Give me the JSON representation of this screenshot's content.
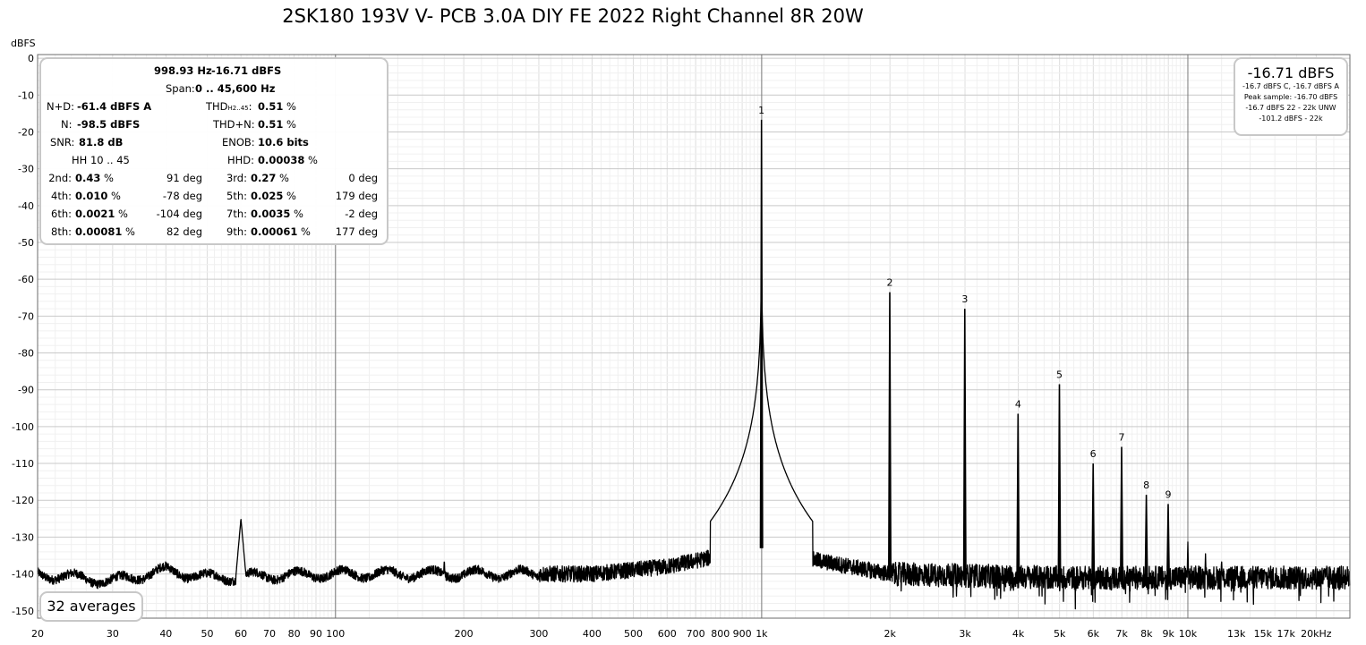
{
  "title": "2SK180 193V V- PCB 3.0A DIY FE 2022 Right Channel 8R 20W",
  "stats": {
    "fundamental_freq": "998.93 Hz",
    "fundamental_level": "-16.71 dBFS",
    "span_label": "Span:",
    "span_value": "0 .. 45,600 Hz",
    "nd_label": "N+D:",
    "nd_value": "-61.4 dBFS A",
    "thd_label_main": "THD",
    "thd_label_sub": "H2..45",
    "thd_value": "0.51",
    "n_label": "N:",
    "n_value": "-98.5 dBFS",
    "thdn_label": "THD+N:",
    "thdn_value": "0.51",
    "snr_label": "SNR:",
    "snr_value": "81.8 dB",
    "enob_label": "ENOB:",
    "enob_value": "10.6 bits",
    "hh_label": "HH 10 .. 45",
    "hhd_label": "HHD:",
    "hhd_value": "0.00038",
    "percent": "%",
    "harmonics": [
      {
        "label": "2nd:",
        "value": "0.43",
        "phase": "91 deg"
      },
      {
        "label": "3rd:",
        "value": "0.27",
        "phase": "0 deg"
      },
      {
        "label": "4th:",
        "value": "0.010",
        "phase": "-78 deg"
      },
      {
        "label": "5th:",
        "value": "0.025",
        "phase": "179 deg"
      },
      {
        "label": "6th:",
        "value": "0.0021",
        "phase": "-104 deg"
      },
      {
        "label": "7th:",
        "value": "0.0035",
        "phase": "-2 deg"
      },
      {
        "label": "8th:",
        "value": "0.00081",
        "phase": "82 deg"
      },
      {
        "label": "9th:",
        "value": "0.00061",
        "phase": "177 deg"
      }
    ]
  },
  "level_box": {
    "main": "-16.71 dBFS",
    "lines": [
      "-16.7 dBFS C, -16.7 dBFS A",
      "Peak sample: -16.70 dBFS",
      "-16.7 dBFS 22 - 22k UNW",
      "-101.2 dBFS - 22k"
    ]
  },
  "averages": "32 averages",
  "chart_data": {
    "type": "line",
    "title": "2SK180 193V V- PCB 3.0A DIY FE 2022 Right Channel 8R 20W",
    "xlabel": "",
    "ylabel": "dBFS",
    "x_scale": "log",
    "xlim": [
      20,
      24000
    ],
    "ylim": [
      -152,
      1
    ],
    "grid": true,
    "y_ticks": [
      0,
      -10,
      -20,
      -30,
      -40,
      -50,
      -60,
      -70,
      -80,
      -90,
      -100,
      -110,
      -120,
      -130,
      -140,
      -150
    ],
    "x_ticks": [
      {
        "v": 20,
        "label": "20"
      },
      {
        "v": 30,
        "label": "30"
      },
      {
        "v": 40,
        "label": "40"
      },
      {
        "v": 50,
        "label": "50"
      },
      {
        "v": 60,
        "label": "60"
      },
      {
        "v": 70,
        "label": "70"
      },
      {
        "v": 80,
        "label": "80"
      },
      {
        "v": 90,
        "label": "90"
      },
      {
        "v": 100,
        "label": "100"
      },
      {
        "v": 200,
        "label": "200"
      },
      {
        "v": 300,
        "label": "300"
      },
      {
        "v": 400,
        "label": "400"
      },
      {
        "v": 500,
        "label": "500"
      },
      {
        "v": 600,
        "label": "600"
      },
      {
        "v": 700,
        "label": "700"
      },
      {
        "v": 800,
        "label": "800"
      },
      {
        "v": 900,
        "label": "900"
      },
      {
        "v": 1000,
        "label": "1k"
      },
      {
        "v": 2000,
        "label": "2k"
      },
      {
        "v": 3000,
        "label": "3k"
      },
      {
        "v": 4000,
        "label": "4k"
      },
      {
        "v": 5000,
        "label": "5k"
      },
      {
        "v": 6000,
        "label": "6k"
      },
      {
        "v": 7000,
        "label": "7k"
      },
      {
        "v": 8000,
        "label": "8k"
      },
      {
        "v": 9000,
        "label": "9k"
      },
      {
        "v": 10000,
        "label": "10k"
      },
      {
        "v": 13000,
        "label": "13k"
      },
      {
        "v": 15000,
        "label": "15k"
      },
      {
        "v": 17000,
        "label": "17k"
      },
      {
        "v": 20000,
        "label": "20kHz"
      }
    ],
    "harmonic_peaks": [
      {
        "n": "1",
        "freq": 999,
        "level": -16.7
      },
      {
        "n": "2",
        "freq": 1998,
        "level": -63.5
      },
      {
        "n": "3",
        "freq": 2997,
        "level": -68.0
      },
      {
        "n": "4",
        "freq": 3996,
        "level": -96.5
      },
      {
        "n": "5",
        "freq": 4995,
        "level": -88.5
      },
      {
        "n": "6",
        "freq": 5994,
        "level": -110.0
      },
      {
        "n": "7",
        "freq": 6993,
        "level": -105.5
      },
      {
        "n": "8",
        "freq": 7992,
        "level": -118.5
      },
      {
        "n": "9",
        "freq": 8991,
        "level": -121.0
      }
    ],
    "spurs": [
      {
        "freq": 60,
        "level": -125
      },
      {
        "freq": 180,
        "level": -136
      },
      {
        "freq": 10000,
        "level": -131
      },
      {
        "freq": 11000,
        "level": -134
      },
      {
        "freq": 12000,
        "level": -136
      }
    ],
    "noise_floor": [
      {
        "x": 20,
        "y": -140
      },
      {
        "x": 30,
        "y": -142
      },
      {
        "x": 40,
        "y": -139
      },
      {
        "x": 50,
        "y": -141
      },
      {
        "x": 100,
        "y": -140
      },
      {
        "x": 200,
        "y": -140
      },
      {
        "x": 400,
        "y": -140
      },
      {
        "x": 600,
        "y": -138
      },
      {
        "x": 800,
        "y": -135
      },
      {
        "x": 900,
        "y": -132
      },
      {
        "x": 1100,
        "y": -132
      },
      {
        "x": 1300,
        "y": -136
      },
      {
        "x": 2000,
        "y": -140
      },
      {
        "x": 5000,
        "y": -141
      },
      {
        "x": 10000,
        "y": -141
      },
      {
        "x": 24000,
        "y": -141
      }
    ]
  }
}
